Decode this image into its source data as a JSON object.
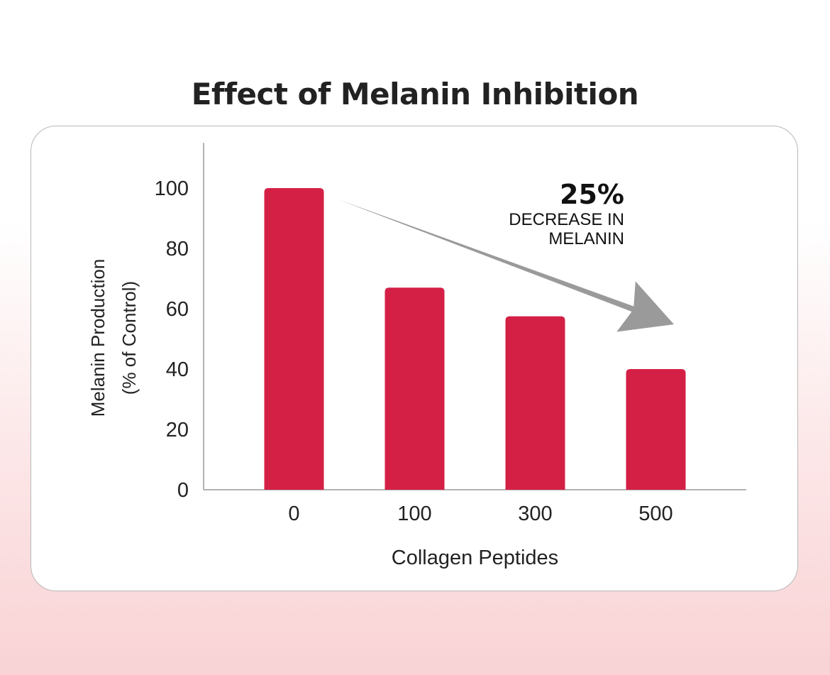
{
  "title": "Effect of Melanin Inhibition",
  "annotation": {
    "value": "25%",
    "line1": "DECREASE IN",
    "line2": "MELANIN"
  },
  "colors": {
    "bar": "#d42045",
    "arrow": "#9a9a9a",
    "axis": "#9a9a9a",
    "text": "#222222"
  },
  "chart_data": {
    "type": "bar",
    "title": "Effect of Melanin Inhibition",
    "xlabel": "Collagen Peptides",
    "ylabel": [
      "Melanin Production",
      "(% of Control)"
    ],
    "categories": [
      "0",
      "100",
      "300",
      "500"
    ],
    "values": [
      100,
      67,
      57.5,
      40
    ],
    "ylim": [
      0,
      115
    ],
    "yticks": [
      0,
      20,
      40,
      60,
      80,
      100
    ],
    "grid": false,
    "legend": "none"
  }
}
